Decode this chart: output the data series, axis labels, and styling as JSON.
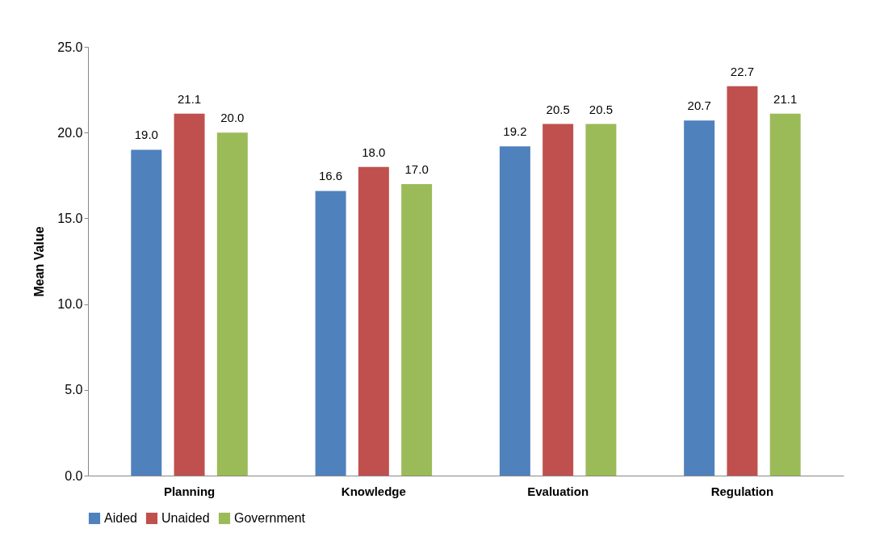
{
  "chart_data": {
    "type": "bar",
    "ylabel": "Mean Value",
    "categories": [
      "Planning",
      "Knowledge",
      "Evaluation",
      "Regulation"
    ],
    "series": [
      {
        "name": "Aided",
        "color": "#4f81bd",
        "values": [
          19.0,
          16.6,
          19.2,
          20.7
        ],
        "value_labels": [
          "19.0",
          "16.6",
          "19.2",
          "20.7"
        ]
      },
      {
        "name": "Unaided",
        "color": "#c0504d",
        "values": [
          21.1,
          18.0,
          20.5,
          22.7
        ],
        "value_labels": [
          "21.1",
          "18.0",
          "20.5",
          "22.7"
        ]
      },
      {
        "name": "Government",
        "color": "#9bbb59",
        "values": [
          20.0,
          17.0,
          20.5,
          21.1
        ],
        "value_labels": [
          "20.0",
          "17.0",
          "20.5",
          "21.1"
        ]
      }
    ],
    "ylim": [
      0,
      25
    ],
    "yticks": [
      {
        "value": 0,
        "label": "0.0"
      },
      {
        "value": 5,
        "label": "5.0"
      },
      {
        "value": 10,
        "label": "10.0"
      },
      {
        "value": 15,
        "label": "15.0"
      },
      {
        "value": 20,
        "label": "20.0"
      },
      {
        "value": 25,
        "label": "25.0"
      }
    ],
    "grid": false,
    "legend": "bottom"
  }
}
